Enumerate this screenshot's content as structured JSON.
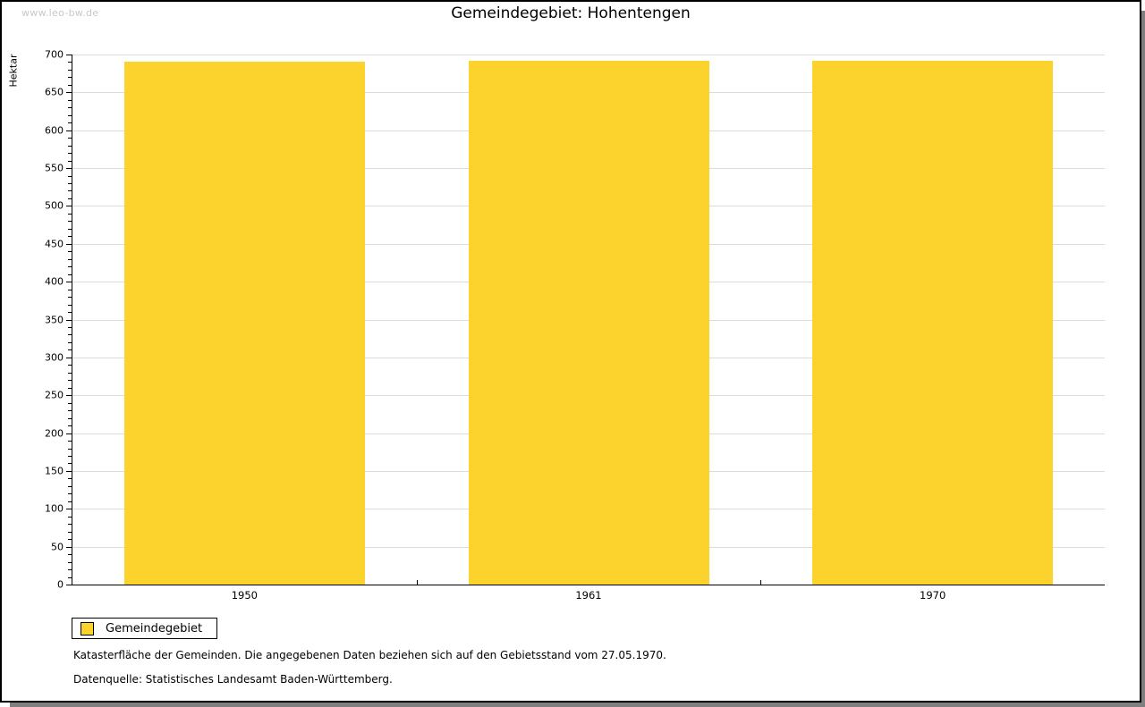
{
  "watermark": "www.leo-bw.de",
  "title": "Gemeindegebiet: Hohentengen",
  "chart_data": {
    "type": "bar",
    "title": "Gemeindegebiet: Hohentengen",
    "categories": [
      "1950",
      "1961",
      "1970"
    ],
    "series": [
      {
        "name": "Gemeindegebiet",
        "values": [
          691,
          692,
          692
        ]
      }
    ],
    "xlabel": "",
    "ylabel": "Hektar",
    "ylim": [
      0,
      700
    ],
    "ytick_step": 50,
    "yminor_step": 10,
    "grid": true,
    "bar_color": "#FCD32D",
    "grid_color": "#dcdcdc",
    "legend_position": "bottom-left"
  },
  "legend": {
    "label": "Gemeindegebiet",
    "swatch_color": "#FCD32D"
  },
  "footnotes": [
    "Katasterfläche der Gemeinden. Die angegebenen Daten beziehen sich auf den Gebietsstand vom 27.05.1970.",
    "Datenquelle: Statistisches Landesamt Baden-Württemberg."
  ]
}
